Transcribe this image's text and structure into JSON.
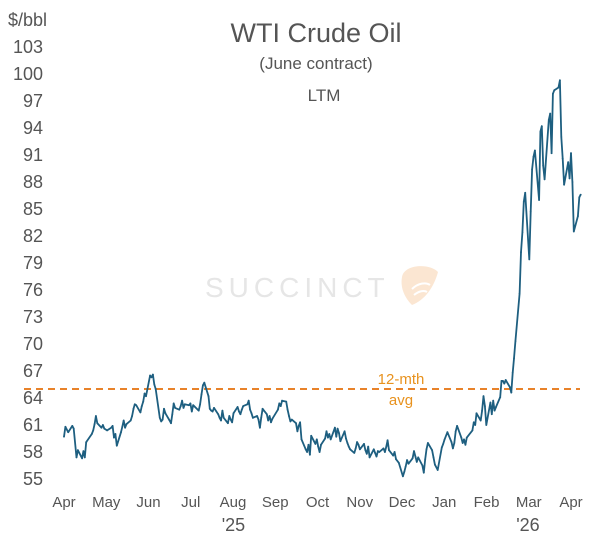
{
  "chart_data": {
    "type": "line",
    "title": "WTI Crude Oil",
    "subtitle": "(June contract)",
    "period": "LTM",
    "ylabel": "$/bbl",
    "ylim": [
      54,
      104
    ],
    "yticks": [
      "55",
      "58",
      "61",
      "64",
      "67",
      "70",
      "73",
      "76",
      "79",
      "82",
      "85",
      "88",
      "91",
      "94",
      "97",
      "100",
      "103"
    ],
    "xticks": [
      "Apr",
      "May",
      "Jun",
      "Jul",
      "Aug",
      "Sep",
      "Oct",
      "Nov",
      "Dec",
      "Jan",
      "Feb",
      "Mar",
      "Apr"
    ],
    "xlim": [
      "2025-04-01",
      "2026-04-01"
    ],
    "year_labels": [
      {
        "label": "'25",
        "date": "2025-08-01"
      },
      {
        "label": "'26",
        "date": "2026-03-01"
      }
    ],
    "grid": false,
    "colors": {
      "line": "#1e5f80",
      "avg": "#e8822a",
      "annotation": "#e8921e",
      "text": "#555555"
    },
    "avg_line": {
      "value": 65,
      "label_line1": "12-mth",
      "label_line2": "avg"
    },
    "watermark": "SUCCINCT",
    "series": [
      {
        "values": [
          [
            "2025-04-01",
            59.7
          ],
          [
            "2025-04-02",
            60.8
          ],
          [
            "2025-04-04",
            60.2
          ],
          [
            "2025-04-07",
            60.9
          ],
          [
            "2025-04-08",
            60.6
          ],
          [
            "2025-04-10",
            57.4
          ],
          [
            "2025-04-11",
            58.2
          ],
          [
            "2025-04-14",
            57.3
          ],
          [
            "2025-04-15",
            58.1
          ],
          [
            "2025-04-16",
            57.4
          ],
          [
            "2025-04-17",
            59.1
          ],
          [
            "2025-04-21",
            60.0
          ],
          [
            "2025-04-22",
            60.4
          ],
          [
            "2025-04-23",
            61.1
          ],
          [
            "2025-04-24",
            62.0
          ],
          [
            "2025-04-25",
            61.2
          ],
          [
            "2025-04-28",
            60.7
          ],
          [
            "2025-04-29",
            61.0
          ],
          [
            "2025-04-30",
            60.6
          ],
          [
            "2025-05-02",
            60.4
          ],
          [
            "2025-05-05",
            60.7
          ],
          [
            "2025-05-06",
            60.9
          ],
          [
            "2025-05-07",
            59.6
          ],
          [
            "2025-05-08",
            60.0
          ],
          [
            "2025-05-09",
            58.7
          ],
          [
            "2025-05-12",
            60.2
          ],
          [
            "2025-05-13",
            60.8
          ],
          [
            "2025-05-14",
            61.5
          ],
          [
            "2025-05-15",
            60.7
          ],
          [
            "2025-05-16",
            61.1
          ],
          [
            "2025-05-19",
            61.5
          ],
          [
            "2025-05-20",
            62.0
          ],
          [
            "2025-05-21",
            62.8
          ],
          [
            "2025-05-22",
            63.3
          ],
          [
            "2025-05-23",
            63.2
          ],
          [
            "2025-05-26",
            62.4
          ],
          [
            "2025-05-27",
            63.1
          ],
          [
            "2025-05-28",
            63.6
          ],
          [
            "2025-05-29",
            64.5
          ],
          [
            "2025-05-30",
            64.2
          ],
          [
            "2025-06-02",
            66.5
          ],
          [
            "2025-06-03",
            66.3
          ],
          [
            "2025-06-04",
            66.6
          ],
          [
            "2025-06-05",
            65.5
          ],
          [
            "2025-06-06",
            65.0
          ],
          [
            "2025-06-09",
            61.8
          ],
          [
            "2025-06-10",
            61.4
          ],
          [
            "2025-06-11",
            61.6
          ],
          [
            "2025-06-12",
            62.8
          ],
          [
            "2025-06-13",
            62.3
          ],
          [
            "2025-06-16",
            61.5
          ],
          [
            "2025-06-17",
            61.2
          ],
          [
            "2025-06-18",
            62.2
          ],
          [
            "2025-06-19",
            63.4
          ],
          [
            "2025-06-20",
            62.9
          ],
          [
            "2025-06-23",
            62.7
          ],
          [
            "2025-06-24",
            63.1
          ],
          [
            "2025-06-25",
            63.7
          ],
          [
            "2025-06-26",
            62.9
          ],
          [
            "2025-06-27",
            63.3
          ],
          [
            "2025-06-30",
            63.2
          ],
          [
            "2025-07-01",
            63.4
          ],
          [
            "2025-07-02",
            62.5
          ],
          [
            "2025-07-03",
            63.2
          ],
          [
            "2025-07-07",
            62.6
          ],
          [
            "2025-07-08",
            63.3
          ],
          [
            "2025-07-09",
            64.4
          ],
          [
            "2025-07-10",
            65.4
          ],
          [
            "2025-07-11",
            65.7
          ],
          [
            "2025-07-14",
            64.2
          ],
          [
            "2025-07-15",
            62.8
          ],
          [
            "2025-07-16",
            62.6
          ],
          [
            "2025-07-17",
            62.5
          ],
          [
            "2025-07-18",
            62.9
          ],
          [
            "2025-07-21",
            62.2
          ],
          [
            "2025-07-22",
            61.8
          ],
          [
            "2025-07-23",
            61.5
          ],
          [
            "2025-07-24",
            62.6
          ],
          [
            "2025-07-25",
            61.8
          ],
          [
            "2025-07-28",
            61.2
          ],
          [
            "2025-07-29",
            62.0
          ],
          [
            "2025-07-30",
            61.6
          ],
          [
            "2025-07-31",
            61.3
          ],
          [
            "2025-08-01",
            62.3
          ],
          [
            "2025-08-04",
            63.0
          ],
          [
            "2025-08-05",
            62.5
          ],
          [
            "2025-08-06",
            62.2
          ],
          [
            "2025-08-07",
            62.7
          ],
          [
            "2025-08-08",
            63.1
          ],
          [
            "2025-08-11",
            63.3
          ],
          [
            "2025-08-12",
            63.7
          ],
          [
            "2025-08-13",
            62.7
          ],
          [
            "2025-08-14",
            62.3
          ],
          [
            "2025-08-15",
            61.8
          ],
          [
            "2025-08-18",
            62.0
          ],
          [
            "2025-08-19",
            61.6
          ],
          [
            "2025-08-20",
            60.7
          ],
          [
            "2025-08-21",
            61.8
          ],
          [
            "2025-08-22",
            62.8
          ],
          [
            "2025-08-25",
            62.2
          ],
          [
            "2025-08-26",
            61.5
          ],
          [
            "2025-08-27",
            62.0
          ],
          [
            "2025-08-28",
            61.3
          ],
          [
            "2025-08-29",
            61.7
          ],
          [
            "2025-09-02",
            62.7
          ],
          [
            "2025-09-03",
            63.4
          ],
          [
            "2025-09-04",
            63.1
          ],
          [
            "2025-09-05",
            63.7
          ],
          [
            "2025-09-08",
            63.6
          ],
          [
            "2025-09-09",
            62.7
          ],
          [
            "2025-09-10",
            62.0
          ],
          [
            "2025-09-11",
            61.4
          ],
          [
            "2025-09-12",
            61.6
          ],
          [
            "2025-09-15",
            61.2
          ],
          [
            "2025-09-16",
            60.3
          ],
          [
            "2025-09-17",
            60.9
          ],
          [
            "2025-09-18",
            61.3
          ],
          [
            "2025-09-19",
            59.4
          ],
          [
            "2025-09-22",
            58.3
          ],
          [
            "2025-09-23",
            58.0
          ],
          [
            "2025-09-24",
            58.8
          ],
          [
            "2025-09-25",
            57.7
          ],
          [
            "2025-09-26",
            59.8
          ],
          [
            "2025-09-29",
            58.9
          ],
          [
            "2025-09-30",
            59.4
          ],
          [
            "2025-10-01",
            58.6
          ],
          [
            "2025-10-02",
            58.0
          ],
          [
            "2025-10-03",
            58.8
          ],
          [
            "2025-10-06",
            59.5
          ],
          [
            "2025-10-07",
            60.3
          ],
          [
            "2025-10-08",
            59.6
          ],
          [
            "2025-10-09",
            60.0
          ],
          [
            "2025-10-10",
            59.4
          ],
          [
            "2025-10-13",
            60.7
          ],
          [
            "2025-10-14",
            59.7
          ],
          [
            "2025-10-15",
            60.6
          ],
          [
            "2025-10-16",
            60.1
          ],
          [
            "2025-10-17",
            59.2
          ],
          [
            "2025-10-20",
            60.3
          ],
          [
            "2025-10-21",
            59.5
          ],
          [
            "2025-10-22",
            59.0
          ],
          [
            "2025-10-23",
            58.6
          ],
          [
            "2025-10-24",
            58.3
          ],
          [
            "2025-10-27",
            57.9
          ],
          [
            "2025-10-28",
            58.4
          ],
          [
            "2025-10-29",
            59.1
          ],
          [
            "2025-10-30",
            58.8
          ],
          [
            "2025-10-31",
            58.3
          ],
          [
            "2025-11-03",
            58.9
          ],
          [
            "2025-11-04",
            58.2
          ],
          [
            "2025-11-05",
            57.8
          ],
          [
            "2025-11-06",
            58.6
          ],
          [
            "2025-11-07",
            57.4
          ],
          [
            "2025-11-10",
            58.3
          ],
          [
            "2025-11-11",
            57.9
          ],
          [
            "2025-11-12",
            57.5
          ],
          [
            "2025-11-13",
            58.1
          ],
          [
            "2025-11-14",
            58.0
          ],
          [
            "2025-11-17",
            58.4
          ],
          [
            "2025-11-18",
            58.0
          ],
          [
            "2025-11-19",
            58.6
          ],
          [
            "2025-11-20",
            59.3
          ],
          [
            "2025-11-21",
            58.2
          ],
          [
            "2025-11-24",
            57.6
          ],
          [
            "2025-11-25",
            58.0
          ],
          [
            "2025-11-26",
            57.2
          ],
          [
            "2025-11-28",
            56.8
          ],
          [
            "2025-12-01",
            55.3
          ],
          [
            "2025-12-02",
            55.8
          ],
          [
            "2025-12-03",
            56.4
          ],
          [
            "2025-12-04",
            57.1
          ],
          [
            "2025-12-05",
            56.7
          ],
          [
            "2025-12-08",
            57.3
          ],
          [
            "2025-12-09",
            58.1
          ],
          [
            "2025-12-10",
            57.5
          ],
          [
            "2025-12-11",
            56.9
          ],
          [
            "2025-12-12",
            57.4
          ],
          [
            "2025-12-15",
            56.5
          ],
          [
            "2025-12-16",
            55.7
          ],
          [
            "2025-12-17",
            57.2
          ],
          [
            "2025-12-18",
            58.3
          ],
          [
            "2025-12-19",
            59.0
          ],
          [
            "2025-12-22",
            58.2
          ],
          [
            "2025-12-23",
            57.4
          ],
          [
            "2025-12-24",
            56.6
          ],
          [
            "2025-12-26",
            56.0
          ],
          [
            "2025-12-29",
            58.5
          ],
          [
            "2025-12-30",
            58.9
          ],
          [
            "2025-12-31",
            59.4
          ],
          [
            "2026-01-02",
            60.2
          ],
          [
            "2026-01-05",
            59.1
          ],
          [
            "2026-01-06",
            58.4
          ],
          [
            "2026-01-07",
            59.0
          ],
          [
            "2026-01-08",
            60.3
          ],
          [
            "2026-01-09",
            60.9
          ],
          [
            "2026-01-12",
            59.6
          ],
          [
            "2026-01-13",
            59.0
          ],
          [
            "2026-01-14",
            59.4
          ],
          [
            "2026-01-15",
            58.8
          ],
          [
            "2026-01-16",
            59.6
          ],
          [
            "2026-01-20",
            60.4
          ],
          [
            "2026-01-21",
            61.3
          ],
          [
            "2026-01-22",
            61.0
          ],
          [
            "2026-01-23",
            62.3
          ],
          [
            "2026-01-26",
            61.5
          ],
          [
            "2026-01-27",
            62.6
          ],
          [
            "2026-01-28",
            64.2
          ],
          [
            "2026-01-29",
            63.1
          ],
          [
            "2026-01-30",
            61.0
          ],
          [
            "2026-02-02",
            63.5
          ],
          [
            "2026-02-03",
            62.2
          ],
          [
            "2026-02-04",
            63.7
          ],
          [
            "2026-02-05",
            62.6
          ],
          [
            "2026-02-06",
            63.0
          ],
          [
            "2026-02-09",
            64.1
          ],
          [
            "2026-02-10",
            65.9
          ],
          [
            "2026-02-11",
            65.9
          ],
          [
            "2026-02-12",
            65.6
          ],
          [
            "2026-02-13",
            66.0
          ],
          [
            "2026-02-16",
            65.2
          ],
          [
            "2026-02-17",
            64.6
          ],
          [
            "2026-02-18",
            66.8
          ],
          [
            "2026-02-19",
            68.4
          ],
          [
            "2026-02-20",
            70.3
          ],
          [
            "2026-02-23",
            75.6
          ],
          [
            "2026-02-24",
            80.2
          ],
          [
            "2026-02-25",
            82.4
          ],
          [
            "2026-02-26",
            85.8
          ],
          [
            "2026-02-27",
            86.8
          ],
          [
            "2026-03-02",
            79.4
          ],
          [
            "2026-03-03",
            84.7
          ],
          [
            "2026-03-04",
            89.4
          ],
          [
            "2026-03-05",
            90.8
          ],
          [
            "2026-03-06",
            91.5
          ],
          [
            "2026-03-09",
            86.0
          ],
          [
            "2026-03-10",
            93.6
          ],
          [
            "2026-03-11",
            94.2
          ],
          [
            "2026-03-12",
            89.8
          ],
          [
            "2026-03-13",
            88.3
          ],
          [
            "2026-03-16",
            94.9
          ],
          [
            "2026-03-17",
            95.6
          ],
          [
            "2026-03-18",
            91.2
          ],
          [
            "2026-03-19",
            97.8
          ],
          [
            "2026-03-20",
            98.2
          ],
          [
            "2026-03-23",
            98.5
          ],
          [
            "2026-03-24",
            99.3
          ],
          [
            "2026-03-25",
            93.0
          ],
          [
            "2026-03-26",
            90.6
          ],
          [
            "2026-03-27",
            87.7
          ],
          [
            "2026-03-30",
            90.2
          ],
          [
            "2026-03-31",
            88.4
          ],
          [
            "2026-04-01",
            91.2
          ],
          [
            "2026-04-02",
            88.0
          ],
          [
            "2026-04-03",
            82.5
          ],
          [
            "2026-04-06",
            84.2
          ],
          [
            "2026-04-07",
            86.3
          ],
          [
            "2026-04-08",
            86.6
          ]
        ]
      }
    ]
  }
}
